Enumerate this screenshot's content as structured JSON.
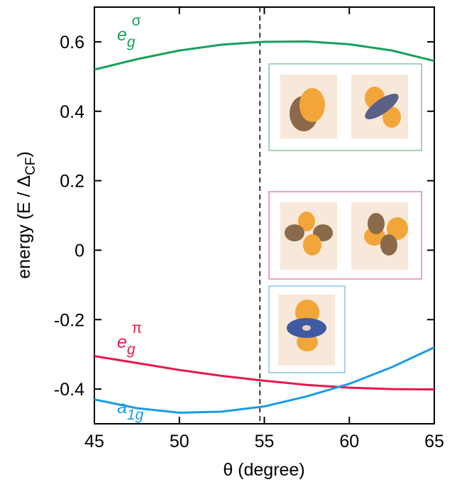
{
  "chart_data": {
    "type": "line",
    "x_label": "θ (degree)",
    "y_label": {
      "text": "energy (E / Δ",
      "subscript": "CF",
      "end": ")"
    },
    "x": [
      45,
      47.5,
      50,
      52.5,
      55,
      57.5,
      60,
      62.5,
      65
    ],
    "series": [
      {
        "name": "e",
        "subscript": "g",
        "superscript": "σ",
        "color": "#17a05a",
        "values": [
          0.52,
          0.55,
          0.575,
          0.592,
          0.6,
          0.601,
          0.593,
          0.575,
          0.545
        ]
      },
      {
        "name": "e",
        "subscript": "g",
        "superscript": "π",
        "color": "#e8174a",
        "values": [
          -0.305,
          -0.325,
          -0.345,
          -0.362,
          -0.376,
          -0.388,
          -0.396,
          -0.4,
          -0.401
        ]
      },
      {
        "name": "a",
        "subscript": "1g",
        "superscript": null,
        "color": "#1a9be8",
        "values": [
          -0.43,
          -0.455,
          -0.468,
          -0.465,
          -0.45,
          -0.421,
          -0.385,
          -0.337,
          -0.28
        ]
      }
    ],
    "vline": 54.74,
    "xlim": [
      45,
      65
    ],
    "xticks": [
      45,
      50,
      55,
      60,
      65
    ],
    "ylim": [
      -0.5,
      0.7
    ],
    "yticks": [
      {
        "value": -0.4,
        "label": "-0.4"
      },
      {
        "value": -0.2,
        "label": "-0.2"
      },
      0,
      0.2,
      0.4,
      0.6
    ]
  }
}
